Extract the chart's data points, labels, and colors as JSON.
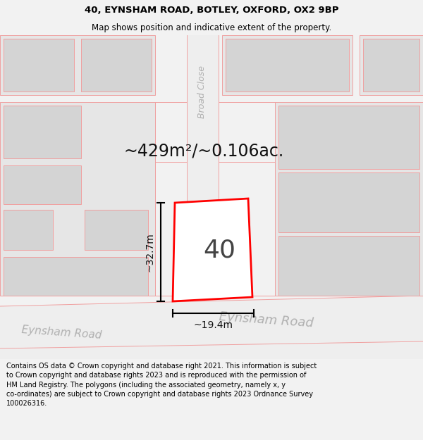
{
  "title": "40, EYNSHAM ROAD, BOTLEY, OXFORD, OX2 9BP",
  "subtitle": "Map shows position and indicative extent of the property.",
  "area_label": "~429m²/~0.106ac.",
  "number_label": "40",
  "dim_width": "~19.4m",
  "dim_height": "~32.7m",
  "road_label_bottom_left": "Eynsham Road",
  "road_label_bottom_right": "Eynsham Road",
  "road_label_vertical": "Broad Close",
  "footer": "Contains OS data © Crown copyright and database right 2021. This information is subject to Crown copyright and database rights 2023 and is reproduced with the permission of HM Land Registry. The polygons (including the associated geometry, namely x, y co-ordinates) are subject to Crown copyright and database rights 2023 Ordnance Survey 100026316.",
  "bg_color": "#f2f2f2",
  "map_bg": "#ffffff",
  "plot_edge_color": "#ff0000",
  "line_color": "#f0a0a0",
  "building_fill": "#d4d4d4",
  "block_fill": "#e6e6e6",
  "road_fill": "#eeeeee",
  "title_fontsize": 9.5,
  "subtitle_fontsize": 8.5,
  "area_fontsize": 17,
  "number_fontsize": 26,
  "dim_fontsize": 10,
  "road_fontsize_small": 11,
  "road_fontsize_large": 13,
  "footer_fontsize": 7
}
